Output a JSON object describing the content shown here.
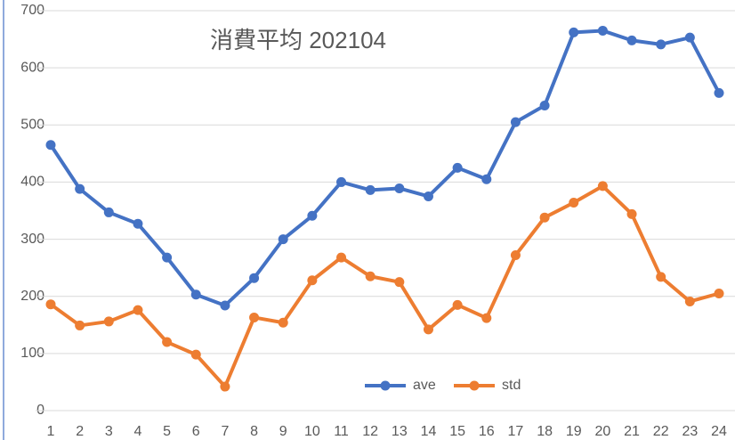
{
  "chart_data": {
    "type": "line",
    "title": "消費平均 202104",
    "categories": [
      "1",
      "2",
      "3",
      "4",
      "5",
      "6",
      "7",
      "8",
      "9",
      "10",
      "11",
      "12",
      "13",
      "14",
      "15",
      "16",
      "17",
      "18",
      "19",
      "20",
      "21",
      "22",
      "23",
      "24"
    ],
    "series": [
      {
        "name": "ave",
        "color": "#4472c4",
        "values": [
          465,
          388,
          347,
          327,
          268,
          203,
          184,
          232,
          300,
          341,
          400,
          386,
          389,
          375,
          425,
          405,
          505,
          534,
          662,
          665,
          648,
          641,
          653,
          556
        ]
      },
      {
        "name": "std",
        "color": "#ed7d31",
        "values": [
          186,
          149,
          156,
          176,
          120,
          98,
          42,
          163,
          154,
          228,
          268,
          235,
          225,
          142,
          185,
          162,
          272,
          338,
          364,
          393,
          344,
          234,
          191,
          205
        ]
      }
    ],
    "ylim": [
      0,
      700
    ],
    "yticks": [
      0,
      100,
      200,
      300,
      400,
      500,
      600,
      700
    ],
    "grid": true
  }
}
